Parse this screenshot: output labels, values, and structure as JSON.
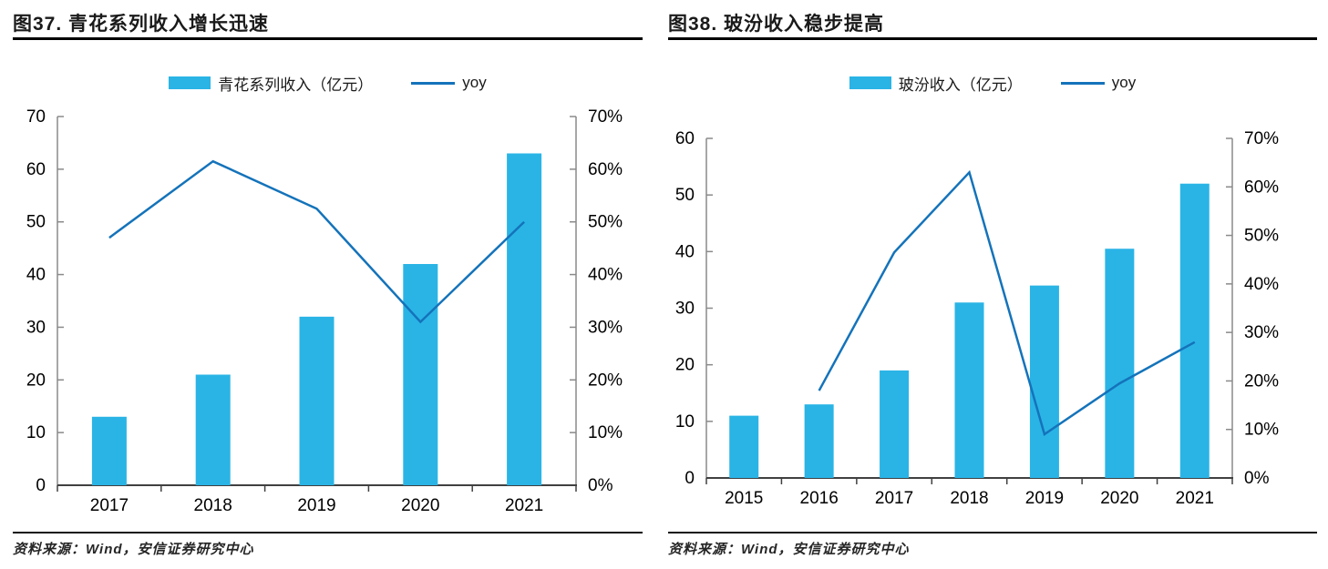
{
  "colors": {
    "bar": "#2AB4E6",
    "line": "#1473BA",
    "axis": "#8A8A8A",
    "baseline": "#404040",
    "text": "#000000",
    "title": "#1A1A1A"
  },
  "panels": [
    {
      "title": "图37. 青花系列收入增长迅速",
      "source": "资料来源：Wind，安信证券研究中心"
    },
    {
      "title": "图38. 玻汾收入稳步提高",
      "source": "资料来源：Wind，安信证券研究中心"
    }
  ],
  "chart_data": [
    {
      "id": "chart37",
      "type": "bar",
      "title": "图37. 青花系列收入增长迅速",
      "legend_position": "top",
      "grid": false,
      "categories": [
        "2017",
        "2018",
        "2019",
        "2020",
        "2021"
      ],
      "series": [
        {
          "name": "青花系列收入（亿元）",
          "type": "bar",
          "axis": "left",
          "values": [
            13,
            21,
            32,
            42,
            63
          ]
        },
        {
          "name": "yoy",
          "type": "line",
          "axis": "right",
          "values": [
            47,
            61.5,
            52.5,
            31,
            50
          ]
        }
      ],
      "left_axis": {
        "min": 0,
        "max": 70,
        "step": 10,
        "format": "number"
      },
      "right_axis": {
        "min": 0,
        "max": 70,
        "step": 10,
        "format": "percent"
      }
    },
    {
      "id": "chart38",
      "type": "bar",
      "title": "图38. 玻汾收入稳步提高",
      "legend_position": "top",
      "grid": false,
      "categories": [
        "2015",
        "2016",
        "2017",
        "2018",
        "2019",
        "2020",
        "2021"
      ],
      "series": [
        {
          "name": "玻汾收入（亿元）",
          "type": "bar",
          "axis": "left",
          "values": [
            11,
            13,
            19,
            31,
            34,
            40.5,
            52
          ]
        },
        {
          "name": "yoy",
          "type": "line",
          "axis": "right",
          "values": [
            null,
            18,
            46.5,
            63,
            9,
            19.5,
            28
          ]
        }
      ],
      "left_axis": {
        "min": 0,
        "max": 60,
        "step": 10,
        "format": "number"
      },
      "right_axis": {
        "min": 0,
        "max": 70,
        "step": 10,
        "format": "percent"
      }
    }
  ]
}
